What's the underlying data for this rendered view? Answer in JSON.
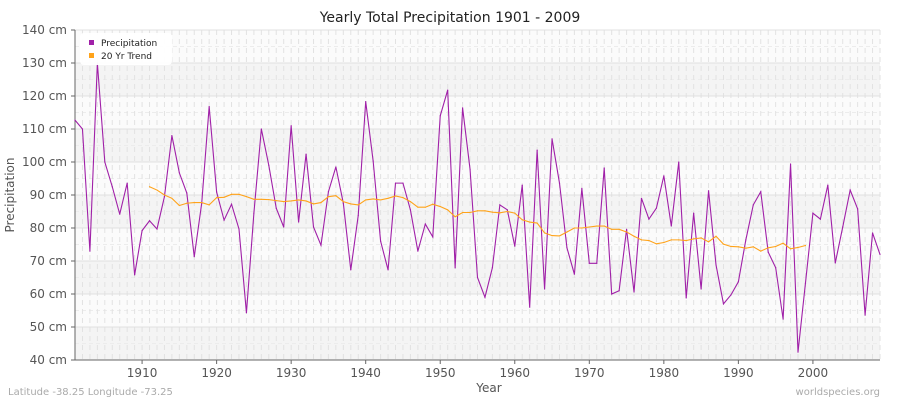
{
  "chart_data": {
    "type": "line",
    "title": "Yearly Total Precipitation 1901 - 2009",
    "xlabel": "Year",
    "ylabel": "Precipitation",
    "xlim": [
      1901,
      2009
    ],
    "ylim": [
      40,
      140
    ],
    "y_unit": "cm",
    "x_ticks": [
      1910,
      1920,
      1930,
      1940,
      1950,
      1960,
      1970,
      1980,
      1990,
      2000
    ],
    "y_ticks": [
      "40 cm",
      "50 cm",
      "60 cm",
      "70 cm",
      "80 cm",
      "90 cm",
      "100 cm",
      "110 cm",
      "120 cm",
      "130 cm",
      "140 cm"
    ],
    "grid": true,
    "legend_position": "top-left",
    "colors": {
      "precipitation": "#a020a8",
      "trend": "#ffa31a"
    },
    "series": [
      {
        "name": "Precipitation",
        "start_year": 1901,
        "values": [
          112.7,
          110,
          73,
          130,
          100,
          92.5,
          84.2,
          93.6,
          65.8,
          79.2,
          82.2,
          79.7,
          89.5,
          108,
          96.7,
          90.6,
          71.3,
          87.5,
          116.8,
          90.9,
          82.4,
          87.2,
          79.7,
          54.3,
          84.5,
          110,
          99,
          86,
          80.3,
          111,
          81.8,
          102.4,
          80.3,
          74.8,
          91,
          98.5,
          87.5,
          67.3,
          83.8,
          118.3,
          100.3,
          76,
          67.3,
          93.6,
          93.6,
          85.5,
          73,
          81.2,
          77.3,
          114,
          121.8,
          67.9,
          116.4,
          97.8,
          65,
          59,
          68,
          87,
          85.5,
          74.5,
          93,
          56,
          103.6,
          61.5,
          107,
          93.6,
          74,
          66,
          92,
          69.3,
          69.3,
          98.2,
          60,
          61,
          79.6,
          60.6,
          89,
          82.7,
          86,
          95.8,
          80.6,
          100,
          58.8,
          84.5,
          61.5,
          91.3,
          68.8,
          57,
          59.7,
          63.7,
          76.4,
          87,
          91,
          72.7,
          68,
          52.4,
          99.4,
          42.4,
          63.3,
          84.5,
          82.7,
          93,
          69.4,
          80.3,
          91.5,
          85.8,
          53.6,
          78.5,
          72
        ]
      },
      {
        "name": "20 Yr Trend",
        "start_year": 1911,
        "values": [
          92.5,
          91.5,
          90,
          89,
          86.8,
          87.5,
          87.7,
          87.7,
          87,
          89.2,
          89.3,
          90.2,
          90.2,
          89.5,
          88.7,
          88.7,
          88.6,
          88.3,
          88,
          88.2,
          88.5,
          88.2,
          87.3,
          87.7,
          89.5,
          89.8,
          88,
          87.3,
          87,
          88.5,
          88.8,
          88.5,
          89,
          89.7,
          89.2,
          88,
          86.3,
          86.3,
          87.2,
          86.5,
          85.5,
          83.4,
          84.7,
          84.7,
          85.2,
          85.2,
          84.8,
          84.6,
          85,
          84.5,
          82.5,
          81.8,
          81.5,
          78.5,
          77.7,
          77.6,
          78.8,
          80,
          80,
          80.3,
          80.6,
          80.6,
          79.6,
          79.6,
          78.8,
          77.5,
          76.4,
          76.2,
          75.2,
          75.6,
          76.4,
          76.4,
          76.2,
          76.7,
          77,
          75.8,
          77.5,
          75.1,
          74.4,
          74.3,
          73.9,
          74.3,
          73,
          74,
          74.4,
          75.4,
          73.7,
          74.1,
          74.7
        ]
      }
    ]
  },
  "footer": {
    "location": "Latitude -38.25 Longitude -73.25",
    "source": "worldspecies.org"
  }
}
